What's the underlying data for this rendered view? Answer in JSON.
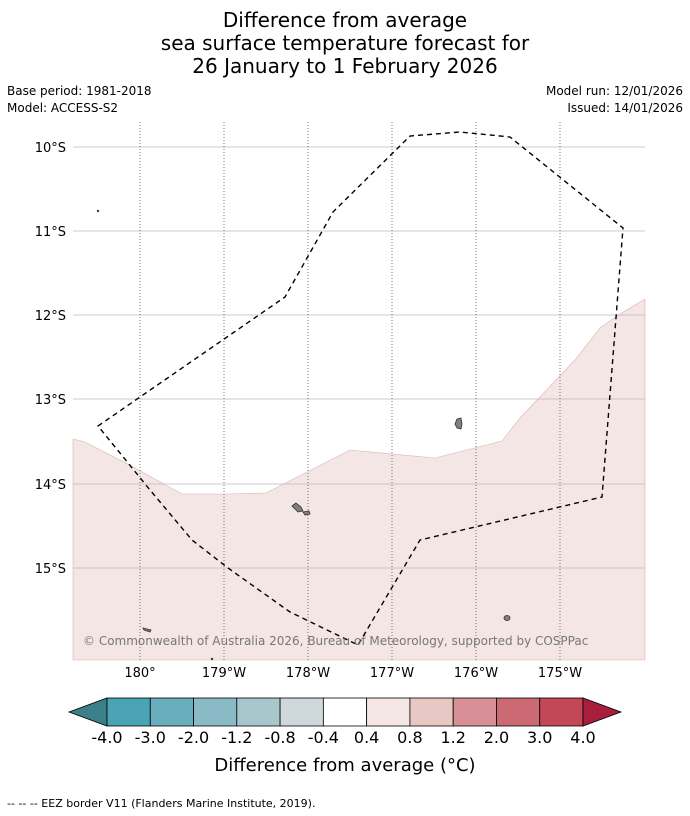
{
  "title": {
    "line1": "Difference from average",
    "line2": "sea surface temperature forecast for",
    "line3": "26 January to 1 February 2026"
  },
  "meta": {
    "base_period": "Base period: 1981-2018",
    "model": "Model: ACCESS-S2",
    "model_run": "Model run: 12/01/2026",
    "issued": "Issued: 14/01/2026"
  },
  "map": {
    "lat_labels": [
      "10°S",
      "11°S",
      "12°S",
      "13°S",
      "14°S",
      "15°S"
    ],
    "lon_labels": [
      "180°",
      "179°W",
      "178°W",
      "177°W",
      "176°W",
      "175°W"
    ],
    "copyright": "© Commonwealth of Australia 2026, Bureau of Meteorology, supported by COSPPac",
    "anomaly_fill_color": "#f3e6e5",
    "land_color": "#7f7f7f"
  },
  "colorbar": {
    "labels": [
      "-4.0",
      "-3.0",
      "-2.0",
      "-1.2",
      "-0.8",
      "-0.4",
      "0.4",
      "0.8",
      "1.2",
      "2.0",
      "3.0",
      "4.0"
    ],
    "colors": [
      "#3b7f89",
      "#4aa4b5",
      "#68aebd",
      "#89bac6",
      "#a8c7cc",
      "#cfd8da",
      "#ffffff",
      "#f4e6e5",
      "#e8c7c4",
      "#d88e97",
      "#cc6a74",
      "#c24858",
      "#a91e3c"
    ],
    "title": "Difference from average (°C)"
  },
  "footnote": "-- -- -- EEZ border V11 (Flanders Marine Institute, 2019)."
}
